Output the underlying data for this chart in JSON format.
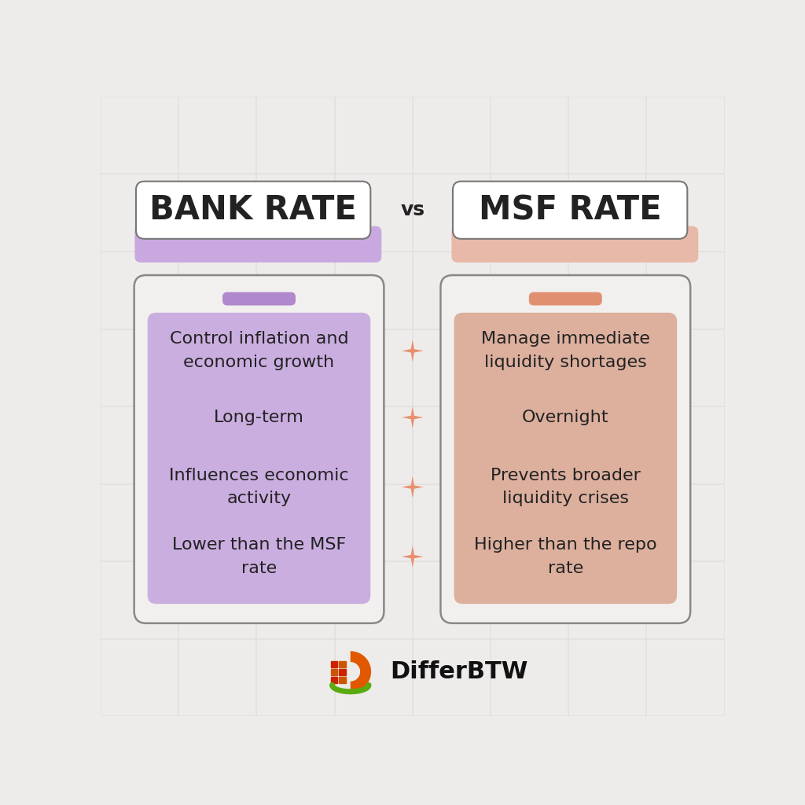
{
  "background_color": "#eeeceb",
  "grid_color": "#e2dfde",
  "title_left": "BANK RATE",
  "title_right": "MSF RATE",
  "vs_text": "vs",
  "left_shadow_color": "#c9a8e0",
  "left_panel_color": "#cbaee0",
  "left_tab_color": "#b088cc",
  "right_shadow_color": "#e8b8a8",
  "right_panel_color": "#ddb09e",
  "right_tab_color": "#e09070",
  "outer_bg": "#f2f0ef",
  "left_items": [
    "Control inflation and\neconomic growth",
    "Long-term",
    "Influences economic\nactivity",
    "Lower than the MSF\nrate"
  ],
  "right_items": [
    "Manage immediate\nliquidity shortages",
    "Overnight",
    "Prevents broader\nliquidity crises",
    "Higher than the repo\nrate"
  ],
  "star_color": "#e89070",
  "text_color": "#222222",
  "title_fontsize": 30,
  "vs_fontsize": 18,
  "item_fontsize": 16,
  "brand_text": "DifferBTW",
  "brand_color": "#111111",
  "brand_fontsize": 22
}
